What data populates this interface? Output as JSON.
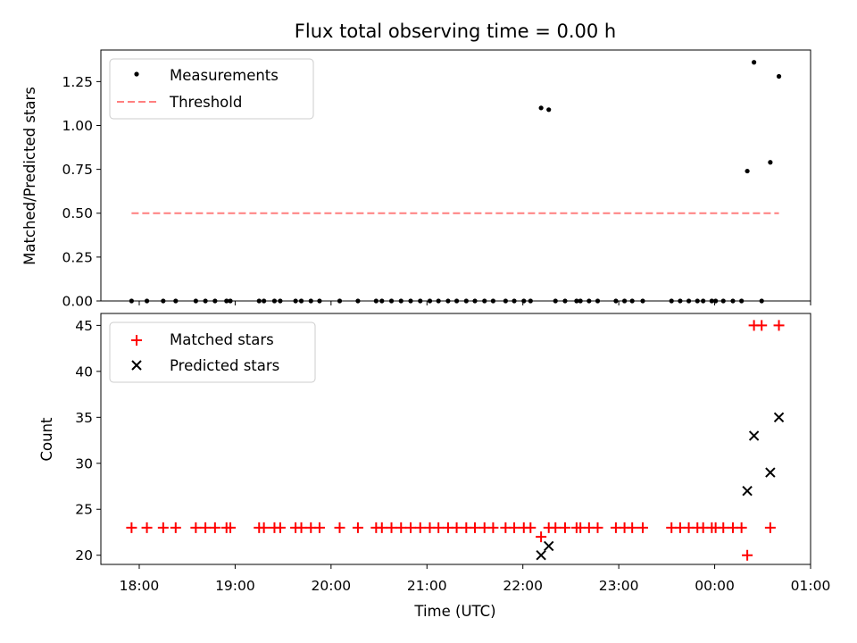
{
  "chart_data": [
    {
      "type": "scatter",
      "title": "Flux total observing time = 0.00 h",
      "xlabel": "",
      "ylabel": "Matched/Predicted stars",
      "ylim": [
        0,
        1.43
      ],
      "yticks": [
        "0.00",
        "0.25",
        "0.50",
        "0.75",
        "1.00",
        "1.25"
      ],
      "legend_position": "top-left",
      "series": [
        {
          "name": "Measurements",
          "marker": "dot",
          "color": "#000000",
          "points": [
            [
              -0.08,
              0
            ],
            [
              0.08,
              0
            ],
            [
              0.25,
              0
            ],
            [
              0.38,
              0
            ],
            [
              0.59,
              0
            ],
            [
              0.69,
              0
            ],
            [
              0.79,
              0
            ],
            [
              0.91,
              0
            ],
            [
              0.95,
              0
            ],
            [
              1.25,
              0
            ],
            [
              1.3,
              0
            ],
            [
              1.41,
              0
            ],
            [
              1.47,
              0
            ],
            [
              1.63,
              0
            ],
            [
              1.69,
              0
            ],
            [
              1.79,
              0
            ],
            [
              1.88,
              0
            ],
            [
              2.09,
              0
            ],
            [
              2.28,
              0
            ],
            [
              2.47,
              0
            ],
            [
              2.53,
              0
            ],
            [
              2.63,
              0
            ],
            [
              2.73,
              0
            ],
            [
              2.83,
              0
            ],
            [
              2.93,
              0
            ],
            [
              3.03,
              0
            ],
            [
              3.12,
              0
            ],
            [
              3.22,
              0
            ],
            [
              3.31,
              0
            ],
            [
              3.41,
              0
            ],
            [
              3.5,
              0
            ],
            [
              3.6,
              0
            ],
            [
              3.69,
              0
            ],
            [
              3.82,
              0
            ],
            [
              3.91,
              0
            ],
            [
              4.01,
              0
            ],
            [
              4.08,
              0
            ],
            [
              4.19,
              1.1
            ],
            [
              4.27,
              1.09
            ],
            [
              4.34,
              0
            ],
            [
              4.44,
              0
            ],
            [
              4.56,
              0
            ],
            [
              4.6,
              0
            ],
            [
              4.69,
              0
            ],
            [
              4.78,
              0
            ],
            [
              4.97,
              0
            ],
            [
              5.06,
              0
            ],
            [
              5.14,
              0
            ],
            [
              5.25,
              0
            ],
            [
              5.55,
              0
            ],
            [
              5.64,
              0
            ],
            [
              5.73,
              0
            ],
            [
              5.82,
              0
            ],
            [
              5.88,
              0
            ],
            [
              5.97,
              0
            ],
            [
              6.01,
              0
            ],
            [
              6.09,
              0
            ],
            [
              6.19,
              0
            ],
            [
              6.28,
              0
            ],
            [
              6.34,
              0.74
            ],
            [
              6.41,
              1.36
            ],
            [
              6.49,
              0
            ],
            [
              6.58,
              0.79
            ],
            [
              6.67,
              1.28
            ]
          ]
        },
        {
          "name": "Threshold",
          "marker": "dashed-line",
          "color": "#ff7f7f",
          "x_range": [
            -0.08,
            6.67
          ],
          "y": 0.5
        }
      ]
    },
    {
      "type": "scatter",
      "title": "",
      "xlabel": "Time (UTC)",
      "ylabel": "Count",
      "ylim": [
        19,
        46.3
      ],
      "yticks": [
        "20",
        "25",
        "30",
        "35",
        "40",
        "45"
      ],
      "xlim": [
        -0.4,
        7.0
      ],
      "xticks": [
        "18:00",
        "19:00",
        "20:00",
        "21:00",
        "22:00",
        "23:00",
        "00:00",
        "01:00"
      ],
      "legend_position": "top-left",
      "series": [
        {
          "name": "Matched stars",
          "marker": "plus",
          "color": "#ff0000",
          "points": [
            [
              -0.08,
              23
            ],
            [
              0.08,
              23
            ],
            [
              0.25,
              23
            ],
            [
              0.38,
              23
            ],
            [
              0.59,
              23
            ],
            [
              0.69,
              23
            ],
            [
              0.79,
              23
            ],
            [
              0.91,
              23
            ],
            [
              0.95,
              23
            ],
            [
              1.25,
              23
            ],
            [
              1.3,
              23
            ],
            [
              1.41,
              23
            ],
            [
              1.47,
              23
            ],
            [
              1.63,
              23
            ],
            [
              1.69,
              23
            ],
            [
              1.79,
              23
            ],
            [
              1.88,
              23
            ],
            [
              2.09,
              23
            ],
            [
              2.28,
              23
            ],
            [
              2.47,
              23
            ],
            [
              2.53,
              23
            ],
            [
              2.63,
              23
            ],
            [
              2.73,
              23
            ],
            [
              2.83,
              23
            ],
            [
              2.93,
              23
            ],
            [
              3.03,
              23
            ],
            [
              3.12,
              23
            ],
            [
              3.22,
              23
            ],
            [
              3.31,
              23
            ],
            [
              3.41,
              23
            ],
            [
              3.5,
              23
            ],
            [
              3.6,
              23
            ],
            [
              3.69,
              23
            ],
            [
              3.82,
              23
            ],
            [
              3.91,
              23
            ],
            [
              4.01,
              23
            ],
            [
              4.08,
              23
            ],
            [
              4.19,
              22
            ],
            [
              4.27,
              23
            ],
            [
              4.34,
              23
            ],
            [
              4.44,
              23
            ],
            [
              4.56,
              23
            ],
            [
              4.6,
              23
            ],
            [
              4.69,
              23
            ],
            [
              4.78,
              23
            ],
            [
              4.97,
              23
            ],
            [
              5.06,
              23
            ],
            [
              5.14,
              23
            ],
            [
              5.25,
              23
            ],
            [
              5.55,
              23
            ],
            [
              5.64,
              23
            ],
            [
              5.73,
              23
            ],
            [
              5.82,
              23
            ],
            [
              5.88,
              23
            ],
            [
              5.97,
              23
            ],
            [
              6.01,
              23
            ],
            [
              6.09,
              23
            ],
            [
              6.19,
              23
            ],
            [
              6.28,
              23
            ],
            [
              6.34,
              20
            ],
            [
              6.41,
              45
            ],
            [
              6.49,
              45
            ],
            [
              6.58,
              23
            ],
            [
              6.67,
              45
            ]
          ]
        },
        {
          "name": "Predicted stars",
          "marker": "x",
          "color": "#000000",
          "points": [
            [
              4.19,
              20
            ],
            [
              4.27,
              21
            ],
            [
              6.34,
              27
            ],
            [
              6.41,
              33
            ],
            [
              6.58,
              29
            ],
            [
              6.67,
              35
            ]
          ]
        }
      ]
    }
  ]
}
